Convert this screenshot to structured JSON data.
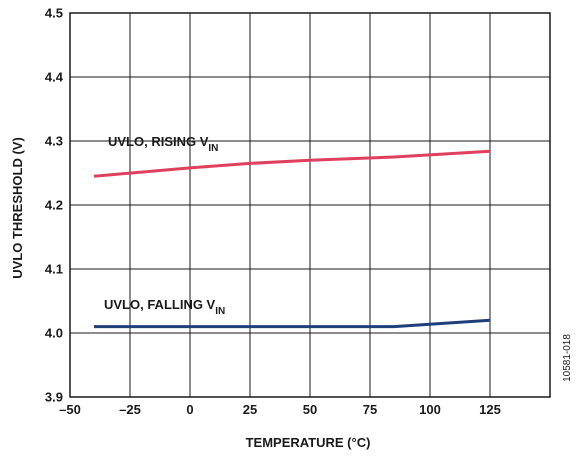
{
  "chart_data": {
    "type": "line",
    "xlabel": "TEMPERATURE (°C)",
    "ylabel": "UVLO THRESHOLD (V)",
    "xlim": [
      -50,
      150
    ],
    "ylim": [
      3.9,
      4.5
    ],
    "x_ticks": [
      -50,
      -25,
      0,
      25,
      50,
      75,
      100,
      125
    ],
    "x_tick_labels": [
      "–50",
      "–25",
      "0",
      "25",
      "50",
      "75",
      "100",
      "125"
    ],
    "y_ticks": [
      3.9,
      4.0,
      4.1,
      4.2,
      4.3,
      4.4,
      4.5
    ],
    "y_tick_labels": [
      "3.9",
      "4.0",
      "4.1",
      "4.2",
      "4.3",
      "4.4",
      "4.5"
    ],
    "grid": true,
    "series": [
      {
        "name": "UVLO, RISING VIN",
        "label_main": "UVLO, RISING V",
        "label_sub": "IN",
        "color": "#e0405e",
        "x": [
          -40,
          0,
          25,
          50,
          85,
          125
        ],
        "y": [
          4.245,
          4.258,
          4.265,
          4.27,
          4.275,
          4.284
        ]
      },
      {
        "name": "UVLO, FALLING VIN",
        "label_main": "UVLO, FALLING V",
        "label_sub": "IN",
        "color": "#1f3f7a",
        "x": [
          -40,
          0,
          25,
          50,
          85,
          125
        ],
        "y": [
          4.01,
          4.01,
          4.01,
          4.01,
          4.01,
          4.02
        ]
      }
    ]
  },
  "figure_id": "10581-018"
}
